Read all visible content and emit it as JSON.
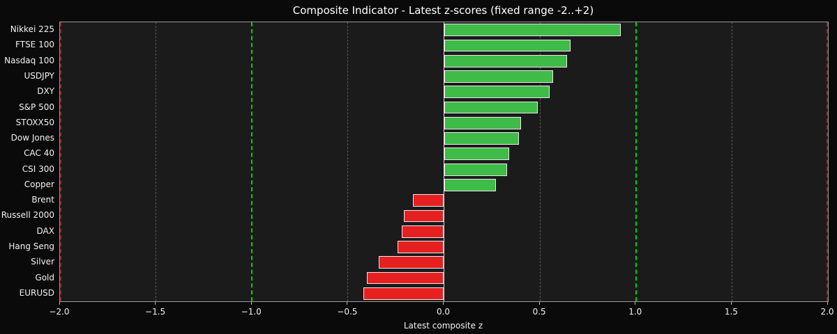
{
  "chart_data": {
    "type": "bar",
    "orientation": "horizontal",
    "title": "Composite Indicator - Latest z-scores (fixed range -2..+2)",
    "xlabel": "Latest composite z",
    "ylabel": "",
    "xlim": [
      -2.0,
      2.0
    ],
    "grid": "vertical-dashed",
    "legend": "none",
    "categories": [
      "Nikkei 225",
      "FTSE 100",
      "Nasdaq 100",
      "USDJPY",
      "DXY",
      "S&P 500",
      "STOXX50",
      "Dow Jones",
      "CAC 40",
      "CSI 300",
      "Copper",
      "Brent",
      "Russell 2000",
      "DAX",
      "Hang Seng",
      "Silver",
      "Gold",
      "EURUSD"
    ],
    "values": [
      0.92,
      0.66,
      0.64,
      0.57,
      0.55,
      0.49,
      0.4,
      0.39,
      0.34,
      0.33,
      0.27,
      -0.16,
      -0.21,
      -0.22,
      -0.24,
      -0.34,
      -0.4,
      -0.42
    ],
    "x_tick_values": [
      -2.0,
      -1.5,
      -1.0,
      -0.5,
      0.0,
      0.5,
      1.0,
      1.5,
      2.0
    ],
    "x_tick_labels": [
      "−2.0",
      "−1.5",
      "−1.0",
      "−0.5",
      "0.0",
      "0.5",
      "1.0",
      "1.5",
      "2.0"
    ],
    "grid_xs": [
      -1.5,
      -0.5,
      0.5,
      1.5
    ],
    "reference_lines": [
      {
        "x": -2.0,
        "color": "#8f2525",
        "style": "dashed"
      },
      {
        "x": -1.0,
        "color": "#00d400",
        "style": "dashed"
      },
      {
        "x": 1.0,
        "color": "#00d400",
        "style": "dashed"
      },
      {
        "x": 2.0,
        "color": "#8f2525",
        "style": "dashed"
      }
    ],
    "colors": {
      "positive_bar": "#3fbb48",
      "negative_bar": "#e62020",
      "bar_edge": "#e8e8e8",
      "zero_line": "#e0e0e0",
      "grid_line": "#5a5a5a",
      "plot_background": "#1b1b1b",
      "figure_background": "#0a0a0a",
      "text": "#f2f2f2"
    }
  }
}
